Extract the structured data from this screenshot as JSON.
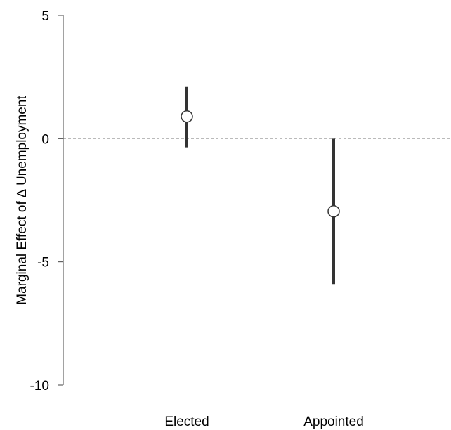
{
  "chart_data": {
    "type": "scatter",
    "title": "",
    "xlabel": "",
    "ylabel": "Marginal Effect of ∆ Unemployment",
    "categories": [
      "Elected",
      "Appointed"
    ],
    "series": [
      {
        "points": [
          {
            "category": "Elected",
            "estimate": 0.9,
            "lower": -0.35,
            "upper": 2.1
          },
          {
            "category": "Appointed",
            "estimate": -2.95,
            "lower": -5.9,
            "upper": 0.0
          }
        ]
      }
    ],
    "ylim": [
      -10,
      5
    ],
    "yticks": [
      5,
      0,
      -5,
      -10
    ],
    "ytick_labels": [
      "5",
      "0",
      "-5",
      "-10"
    ],
    "reference_line": {
      "y": 0,
      "style": "dashed"
    },
    "grid": false,
    "legend": "none",
    "colors": {
      "interval": "#333333",
      "marker_fill": "#ffffff",
      "marker_stroke": "#333333",
      "reference": "#b0b0b0",
      "axis": "#444444"
    }
  }
}
